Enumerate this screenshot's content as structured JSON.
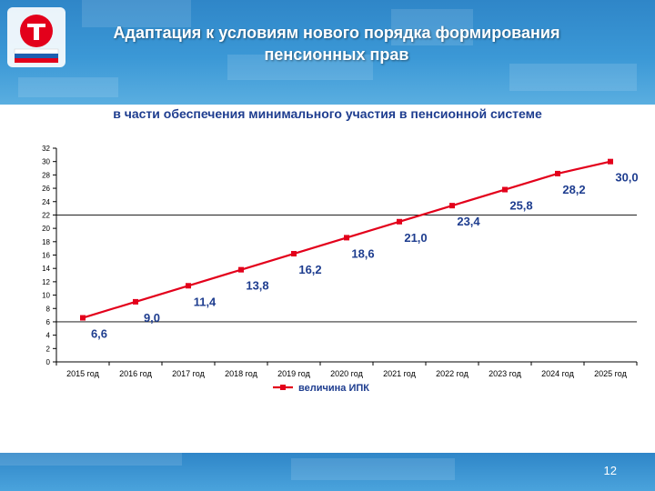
{
  "slide": {
    "title_line1": "Адаптация к условиям нового порядка формирования",
    "title_line2": "пенсионных прав",
    "subtitle": "в части обеспечения минимального участия в пенсионной системе",
    "number": "12"
  },
  "colors": {
    "series": "#e3001b",
    "title_text": "#1e3d8f",
    "header_bg": "#3b98d6"
  },
  "chart_data": {
    "type": "line",
    "categories": [
      "2015 год",
      "2016 год",
      "2017 год",
      "2018 год",
      "2019 год",
      "2020 год",
      "2021 год",
      "2022 год",
      "2023 год",
      "2024 год",
      "2025 год"
    ],
    "series": [
      {
        "name": "величина ИПК",
        "values": [
          6.6,
          9.0,
          11.4,
          13.8,
          16.2,
          18.6,
          21.0,
          23.4,
          25.8,
          28.2,
          30.0
        ],
        "labels": [
          "6,6",
          "9,0",
          "11,4",
          "13,8",
          "16,2",
          "18,6",
          "21,0",
          "23,4",
          "25,8",
          "28,2",
          "30,0"
        ]
      }
    ],
    "yticks": [
      "0",
      "2",
      "4",
      "6",
      "8",
      "10",
      "12",
      "14",
      "16",
      "18",
      "20",
      "22",
      "24",
      "26",
      "28",
      "30",
      "32"
    ],
    "ylim": [
      0,
      32
    ],
    "legend_position": "bottom-center",
    "gridlines": [
      6,
      22
    ]
  }
}
